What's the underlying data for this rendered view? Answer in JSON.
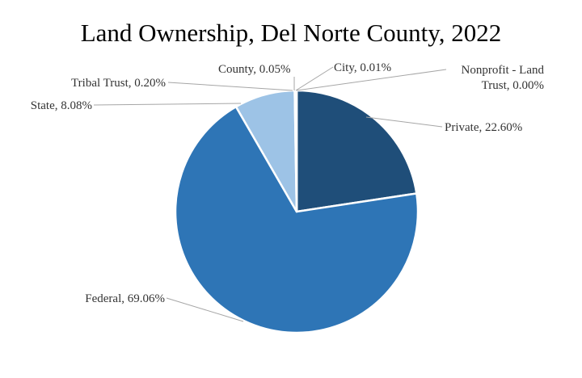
{
  "chart_data": {
    "type": "pie",
    "title": "Land Ownership, Del Norte County, 2022",
    "slices": [
      {
        "name": "Private",
        "value": 22.6,
        "label": "Private, 22.60%",
        "color": "#1F4E79"
      },
      {
        "name": "Federal",
        "value": 69.06,
        "label": "Federal, 69.06%",
        "color": "#2E75B6"
      },
      {
        "name": "State",
        "value": 8.08,
        "label": "State, 8.08%",
        "color": "#9DC3E6"
      },
      {
        "name": "Tribal Trust",
        "value": 0.2,
        "label": "Tribal Trust, 0.20%",
        "color": "#DEEBF7"
      },
      {
        "name": "County",
        "value": 0.05,
        "label": "County, 0.05%",
        "color": "#BDD7EE"
      },
      {
        "name": "City",
        "value": 0.01,
        "label": "City, 0.01%",
        "color": "#8FAADC"
      },
      {
        "name": "Nonprofit - Land Trust",
        "value": 0.0,
        "label_lines": [
          "Nonprofit - Land",
          "Trust, 0.00%"
        ],
        "color": "#C9C9C9"
      }
    ],
    "start_angle": "12 o'clock",
    "direction": "clockwise",
    "legend": "none",
    "leader_line_color": "#A6A6A6"
  }
}
